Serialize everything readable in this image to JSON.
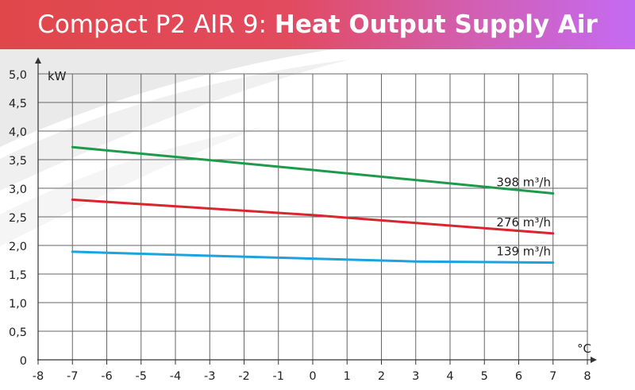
{
  "header": {
    "title_normal": "Compact P2 AIR 9:",
    "title_bold": "Heat Output Supply Air"
  },
  "chart_data": {
    "type": "line",
    "title": "Compact P2 AIR 9: Heat Output Supply Air",
    "xlabel": "°C",
    "ylabel": "kW",
    "xlim": [
      -8,
      8
    ],
    "ylim": [
      0,
      5.0
    ],
    "grid": true,
    "x_ticks": [
      "-8",
      "-7",
      "-6",
      "-5",
      "-4",
      "-3",
      "-2",
      "-1",
      "0",
      "1",
      "2",
      "3",
      "4",
      "5",
      "6",
      "7",
      "8"
    ],
    "y_ticks": [
      "0",
      "0,5",
      "1,0",
      "1,5",
      "2,0",
      "2,5",
      "3,0",
      "3,5",
      "4,0",
      "4,5",
      "5,0"
    ],
    "series": [
      {
        "name": "398 m³/h",
        "color": "#1e9a4b",
        "x": [
          -7,
          0,
          7
        ],
        "y": [
          3.72,
          3.32,
          2.91
        ]
      },
      {
        "name": "276 m³/h",
        "color": "#d9262e",
        "x": [
          -7,
          0,
          7
        ],
        "y": [
          2.8,
          2.53,
          2.21
        ]
      },
      {
        "name": "139 m³/h",
        "color": "#1aa3de",
        "x": [
          -7,
          -3,
          0,
          3,
          7
        ],
        "y": [
          1.89,
          1.82,
          1.77,
          1.72,
          1.7
        ]
      }
    ]
  }
}
